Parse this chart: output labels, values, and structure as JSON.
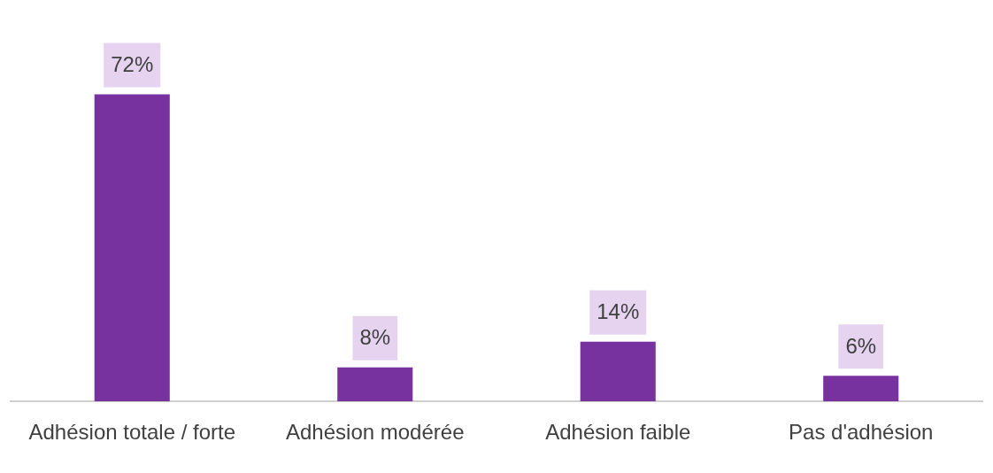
{
  "chart_data": {
    "type": "bar",
    "categories": [
      "Adhésion totale / forte",
      "Adhésion modérée",
      "Adhésion faible",
      "Pas d'adhésion"
    ],
    "values": [
      72,
      8,
      14,
      6
    ],
    "value_labels": [
      "72%",
      "8%",
      "14%",
      "6%"
    ],
    "color": "#7732a0",
    "grid": false,
    "legend": false
  }
}
